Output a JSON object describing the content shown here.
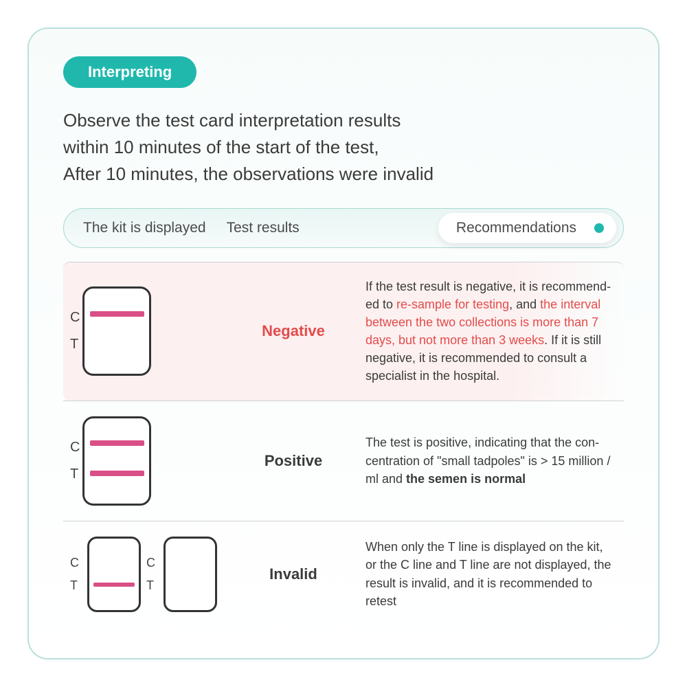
{
  "badge": {
    "label": "Interpreting",
    "bg": "#20b8ad"
  },
  "intro": "Observe the test card interpretation results\nwithin 10 minutes of the start of the test,\nAfter 10 minutes, the observations were invalid",
  "tabs": {
    "kit": "The kit is displayed",
    "results": "Test results",
    "reco": "Recommendations",
    "dot_color": "#20b8ad"
  },
  "rows": {
    "negative": {
      "c_label": "C",
      "t_label": "T",
      "result_label": "Negative",
      "result_color": "#e24c4c",
      "reco_pre": "If the test result is negative, it is recommend­ed to ",
      "reco_red1": "re-sample for testing",
      "reco_mid1": ", and ",
      "reco_red2": "the interval between the two collections is more than 7 days, but not more than 3 weeks",
      "reco_post": ". If it is still negative, it is recommended to consult a specialist in the hospital."
    },
    "positive": {
      "c_label": "C",
      "t_label": "T",
      "result_label": "Positive",
      "result_color": "#3a3a3a",
      "reco_pre": "The test is positive, indicating that the con-centration of \"small tadpoles\" is > 15 million / ml and ",
      "reco_bold": "the semen is normal"
    },
    "invalid": {
      "c_label": "C",
      "t_label": "T",
      "result_label": "Invalid",
      "result_color": "#3a3a3a",
      "reco": "When only the T line is displayed on the kit, or the C line and T line are not displayed, the result is invalid, and it is recommended to retest"
    }
  },
  "colors": {
    "line": "#d94f86",
    "highlight_bg": "#fdf0f0",
    "border": "#b8e0dc"
  }
}
